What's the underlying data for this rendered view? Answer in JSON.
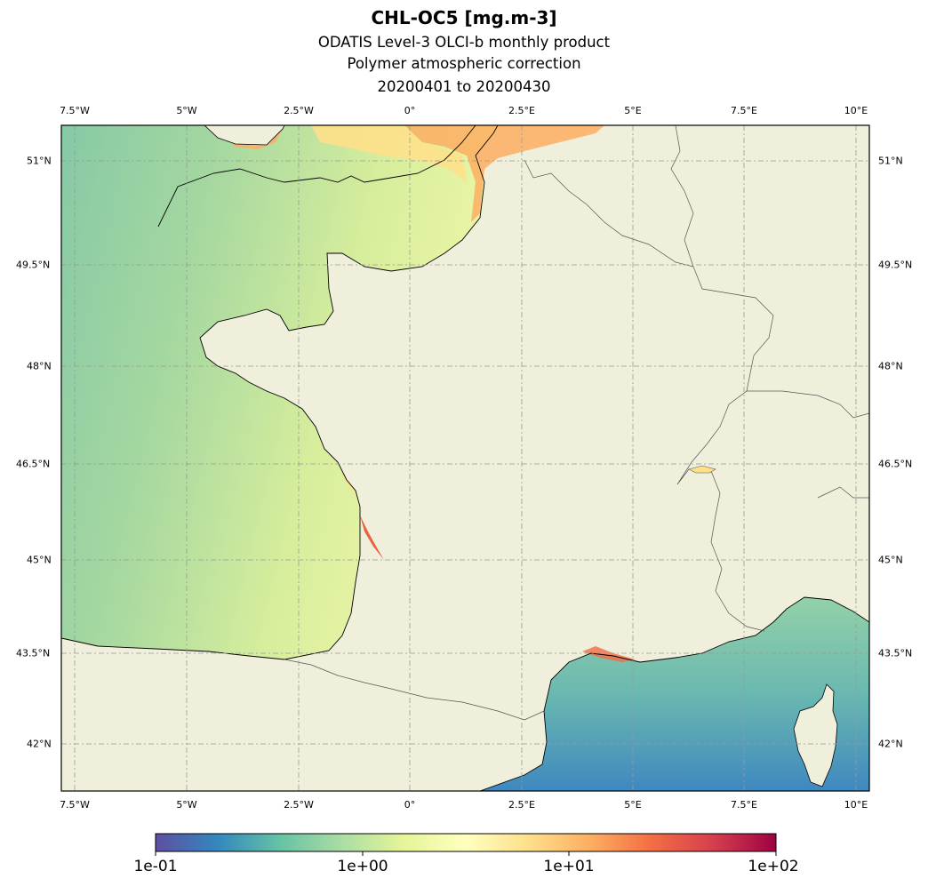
{
  "header": {
    "title": "CHL-OC5 [mg.m-3]",
    "subtitle1": "ODATIS Level-3 OLCI-b monthly product",
    "subtitle2": "Polymer atmospheric correction",
    "subtitle3": "20200401 to 20200430"
  },
  "map": {
    "lon_ticks": [
      "7.5°W",
      "5°W",
      "2.5°W",
      "0°",
      "2.5°E",
      "5°E",
      "7.5°E",
      "10°E"
    ],
    "lat_ticks": [
      "51°N",
      "49.5°N",
      "48°N",
      "46.5°N",
      "45°N",
      "43.5°N",
      "42°N"
    ],
    "land_color": "#efefdc",
    "coast_color": "#000000",
    "border_color": "#555555"
  },
  "colorbar": {
    "scale": "log",
    "range": [
      0.1,
      100
    ],
    "tick_labels": [
      "1e-01",
      "1e+00",
      "1e+01",
      "1e+02"
    ],
    "colormap": "Spectral_r"
  }
}
